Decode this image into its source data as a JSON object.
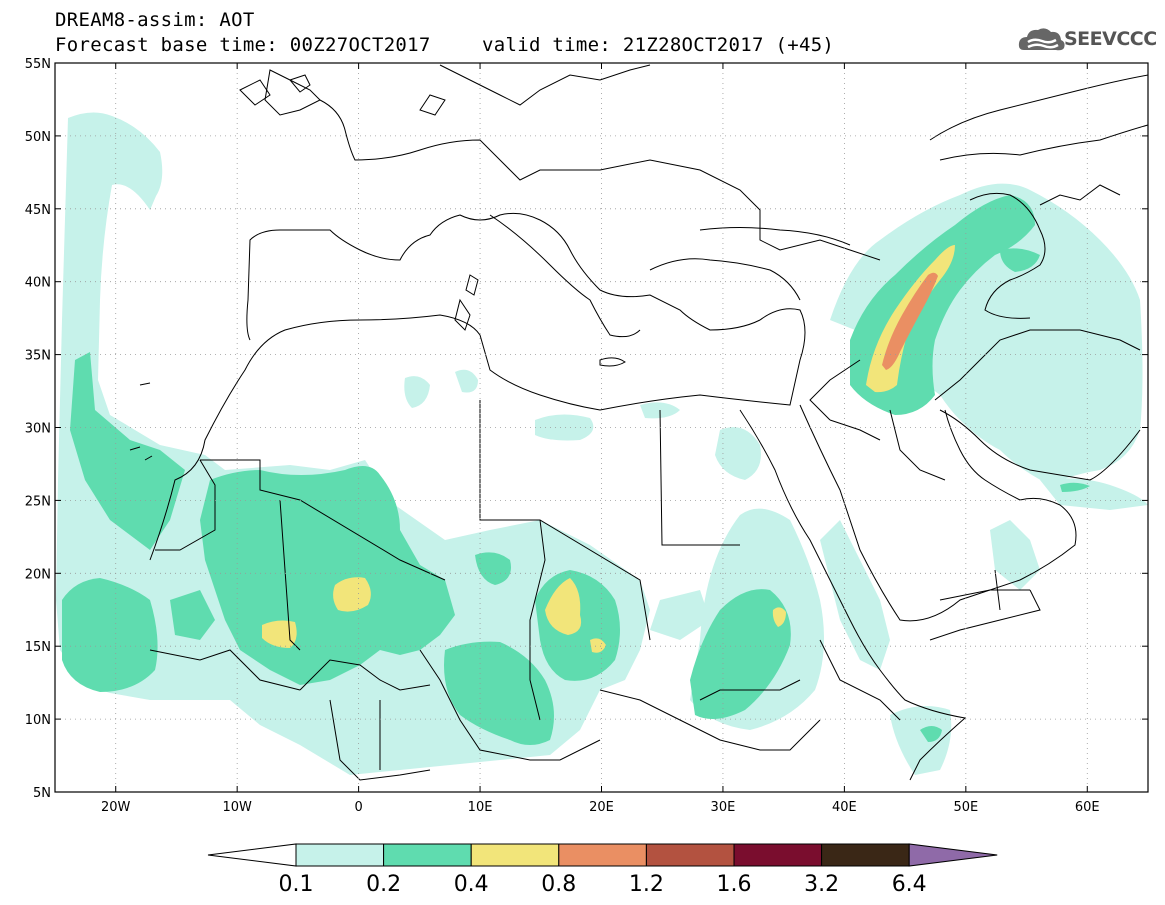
{
  "header": {
    "title_line1": "DREAM8-assim: AOT",
    "title_line2": "Forecast base time: 00Z27OCT2017",
    "valid_time": "valid time: 21Z28OCT2017 (+45)",
    "logo_text": "SEEVCCC",
    "logo_icon": "cloud-icon"
  },
  "map": {
    "lon_range": [
      -25,
      65
    ],
    "lat_range": [
      5,
      55
    ],
    "lat_labels": [
      "55N",
      "50N",
      "45N",
      "40N",
      "35N",
      "30N",
      "25N",
      "20N",
      "15N",
      "10N",
      "5N"
    ],
    "lat_values": [
      55,
      50,
      45,
      40,
      35,
      30,
      25,
      20,
      15,
      10,
      5
    ],
    "lon_labels": [
      "20W",
      "10W",
      "0",
      "10E",
      "20E",
      "30E",
      "40E",
      "50E",
      "60E"
    ],
    "lon_values": [
      -20,
      -10,
      0,
      10,
      20,
      30,
      40,
      50,
      60
    ],
    "gridlines": "dotted"
  },
  "colorbar": {
    "labels": [
      "0.1",
      "0.2",
      "0.4",
      "0.8",
      "1.2",
      "1.6",
      "3.2",
      "6.4"
    ],
    "colors": [
      "#c6f2ea",
      "#5fdcaf",
      "#f2e57a",
      "#ea8f63",
      "#b35240",
      "#7a0d2e",
      "#3a2716",
      "#8f6aa8"
    ],
    "low_end_color": "#ffffff"
  },
  "field_colors": {
    "level1": "#c6f2ea",
    "level2": "#5fdcaf",
    "level3": "#f2e57a",
    "level4": "#ea8f63"
  }
}
